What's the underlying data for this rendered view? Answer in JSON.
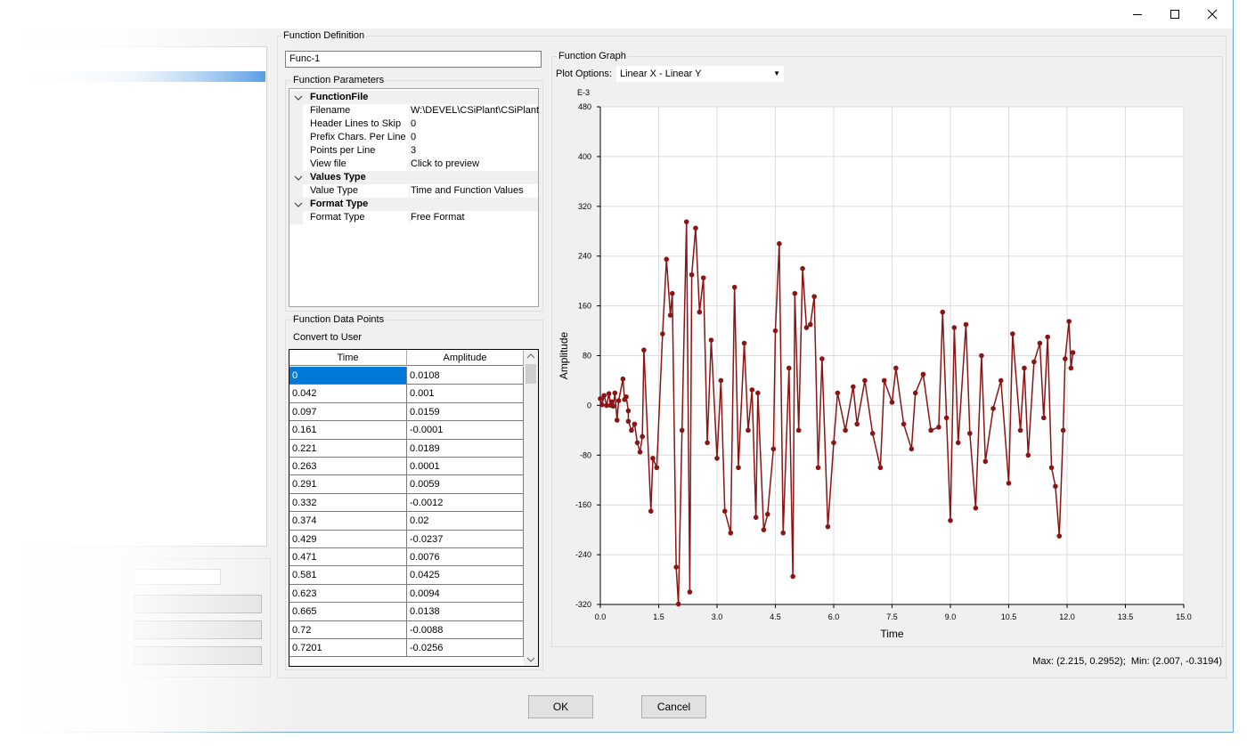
{
  "function_definition": {
    "title": "Function Definition",
    "name": "Func-1"
  },
  "function_parameters": {
    "title": "Function Parameters",
    "groups": [
      {
        "name": "FunctionFile",
        "rows": [
          [
            "Filename",
            "W:\\DEVEL\\CSiPlant\\CSiPlant v"
          ],
          [
            "Header Lines to Skip",
            0
          ],
          [
            "Prefix Chars. Per Line to",
            0
          ],
          [
            "Points per Line",
            3
          ],
          [
            "View file",
            "Click to preview"
          ]
        ]
      },
      {
        "name": "Values Type",
        "rows": [
          [
            "Value Type",
            "Time and Function Values"
          ]
        ]
      },
      {
        "name": "Format Type",
        "rows": [
          [
            "Format Type",
            "Free Format"
          ]
        ]
      }
    ]
  },
  "data_points": {
    "title": "Function Data Points",
    "button": "Convert to User",
    "columns": [
      "Time",
      "Amplitude"
    ],
    "rows": [
      [
        0,
        0.0108
      ],
      [
        0.042,
        0.001
      ],
      [
        0.097,
        0.0159
      ],
      [
        0.161,
        -0.0001
      ],
      [
        0.221,
        0.0189
      ],
      [
        0.263,
        0.0001
      ],
      [
        0.291,
        0.0059
      ],
      [
        0.332,
        -0.0012
      ],
      [
        0.374,
        0.02
      ],
      [
        0.429,
        -0.0237
      ],
      [
        0.471,
        0.0076
      ],
      [
        0.581,
        0.0425
      ],
      [
        0.623,
        0.0094
      ],
      [
        0.665,
        0.0138
      ],
      [
        0.72,
        -0.0088
      ],
      [
        0.7201,
        -0.0256
      ]
    ]
  },
  "graph": {
    "title": "Function Graph",
    "plot_options_label": "Plot Options:",
    "plot_options_value": "Linear X - Linear Y",
    "status": "Max: (2.215, 0.2952);  Min: (2.007, -0.3194)"
  },
  "buttons": {
    "ok": "OK",
    "cancel": "Cancel"
  },
  "chart_data": {
    "type": "line",
    "xlabel": "Time",
    "ylabel": "Amplitude",
    "y_multiplier": "E-3",
    "xlim": [
      0,
      15
    ],
    "ylim": [
      -320,
      480
    ],
    "xticks": [
      {
        "value": 0,
        "label": "0.0"
      },
      1.5,
      {
        "value": 3,
        "label": "3.0"
      },
      4.5,
      {
        "value": 6,
        "label": "6.0"
      },
      7.5,
      {
        "value": 9,
        "label": "9.0"
      },
      10.5,
      {
        "value": 12,
        "label": "12.0"
      },
      13.5,
      {
        "value": 15,
        "label": "15.0"
      }
    ],
    "yticks": [
      -320,
      -240,
      -160,
      -80,
      0,
      80,
      160,
      240,
      320,
      400,
      480
    ],
    "grid": true,
    "x": [
      0,
      0.042,
      0.097,
      0.161,
      0.221,
      0.263,
      0.291,
      0.332,
      0.374,
      0.429,
      0.471,
      0.581,
      0.623,
      0.665,
      0.72,
      0.7201,
      0.8,
      0.88,
      0.95,
      1.02,
      1.08,
      1.12,
      1.3,
      1.35,
      1.45,
      1.6,
      1.7,
      1.8,
      1.85,
      1.95,
      2.007,
      2.1,
      2.215,
      2.3,
      2.35,
      2.45,
      2.55,
      2.65,
      2.75,
      2.85,
      3.0,
      3.1,
      3.2,
      3.35,
      3.45,
      3.55,
      3.7,
      3.8,
      3.9,
      4.0,
      4.05,
      4.2,
      4.3,
      4.45,
      4.5,
      4.6,
      4.7,
      4.85,
      4.95,
      5.0,
      5.1,
      5.2,
      5.3,
      5.4,
      5.5,
      5.6,
      5.7,
      5.85,
      6.0,
      6.1,
      6.3,
      6.5,
      6.6,
      6.8,
      7.0,
      7.2,
      7.3,
      7.5,
      7.6,
      7.8,
      8.0,
      8.1,
      8.3,
      8.5,
      8.7,
      8.8,
      8.9,
      9.0,
      9.1,
      9.2,
      9.4,
      9.5,
      9.65,
      9.8,
      9.9,
      10.1,
      10.3,
      10.5,
      10.6,
      10.8,
      10.9,
      11.0,
      11.15,
      11.3,
      11.4,
      11.5,
      11.6,
      11.7,
      11.8,
      11.9,
      11.95,
      12.05,
      12.1,
      12.15
    ],
    "series": [
      {
        "name": "Amplitude",
        "color": "#8b1414",
        "values": [
          10.8,
          1,
          15.9,
          -0.1,
          18.9,
          0.1,
          5.9,
          -1.2,
          20,
          -23.7,
          7.6,
          42.5,
          9.4,
          13.8,
          -8.8,
          -25.6,
          -40,
          -30,
          -60,
          -75,
          -50,
          89,
          -170,
          -85,
          -100,
          115,
          235,
          145,
          180,
          -260,
          -319.4,
          -40,
          295.2,
          -300,
          210,
          285,
          150,
          205,
          -60,
          105,
          -85,
          40,
          -170,
          -205,
          190,
          -100,
          100,
          -40,
          25,
          -180,
          20,
          -200,
          -175,
          -70,
          120,
          260,
          -205,
          60,
          -275,
          180,
          -40,
          220,
          125,
          130,
          175,
          -100,
          75,
          -195,
          -60,
          20,
          -40,
          30,
          -30,
          40,
          -45,
          -100,
          40,
          5,
          60,
          -30,
          -70,
          20,
          50,
          -40,
          -35,
          150,
          -20,
          -185,
          125,
          -60,
          130,
          -45,
          -165,
          80,
          -90,
          -5,
          40,
          -125,
          115,
          -40,
          60,
          -80,
          70,
          100,
          -20,
          110,
          -100,
          -130,
          -210,
          -40,
          75,
          135,
          60,
          85
        ]
      }
    ]
  }
}
